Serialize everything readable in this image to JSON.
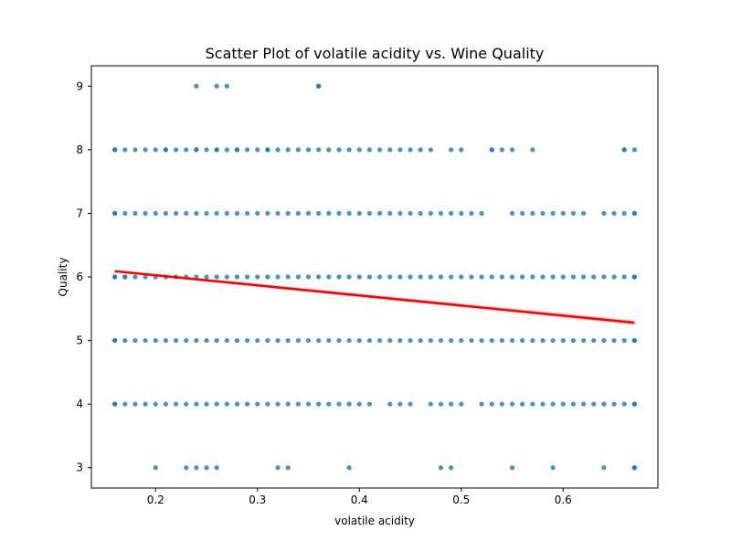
{
  "chart_data": {
    "type": "scatter",
    "title": "Scatter Plot of volatile acidity vs. Wine Quality",
    "xlabel": "volatile acidity",
    "ylabel": "Quality",
    "xlim": [
      0.137,
      0.693
    ],
    "ylim": [
      2.68,
      9.32
    ],
    "x_ticks": [
      0.2,
      0.3,
      0.4,
      0.5,
      0.6
    ],
    "x_tick_labels": [
      "0.2",
      "0.3",
      "0.4",
      "0.5",
      "0.6"
    ],
    "y_ticks": [
      3,
      4,
      5,
      6,
      7,
      8,
      9
    ],
    "y_tick_labels": [
      "3",
      "4",
      "5",
      "6",
      "7",
      "8",
      "9"
    ],
    "grid": false,
    "legend": "none",
    "colors": {
      "points": "#1f77b4",
      "regression": "#ff0000"
    },
    "regression_line": {
      "x": [
        0.16,
        0.67
      ],
      "y": [
        6.09,
        5.28
      ]
    },
    "series": [
      {
        "quality": 9,
        "x": [
          0.24,
          0.26,
          0.27,
          0.36,
          0.36
        ]
      },
      {
        "quality": 8,
        "x": [
          0.16,
          0.16,
          0.17,
          0.18,
          0.19,
          0.2,
          0.21,
          0.21,
          0.22,
          0.23,
          0.24,
          0.24,
          0.25,
          0.26,
          0.26,
          0.27,
          0.28,
          0.28,
          0.29,
          0.3,
          0.31,
          0.31,
          0.32,
          0.33,
          0.34,
          0.35,
          0.36,
          0.37,
          0.38,
          0.39,
          0.4,
          0.41,
          0.42,
          0.43,
          0.44,
          0.45,
          0.46,
          0.47,
          0.49,
          0.5,
          0.53,
          0.53,
          0.54,
          0.55,
          0.57,
          0.66,
          0.66,
          0.67
        ]
      },
      {
        "quality": 7,
        "x": [
          0.16,
          0.16,
          0.17,
          0.18,
          0.19,
          0.2,
          0.21,
          0.22,
          0.23,
          0.24,
          0.25,
          0.26,
          0.27,
          0.28,
          0.29,
          0.3,
          0.31,
          0.32,
          0.33,
          0.34,
          0.35,
          0.36,
          0.37,
          0.38,
          0.39,
          0.4,
          0.41,
          0.42,
          0.43,
          0.44,
          0.45,
          0.46,
          0.47,
          0.48,
          0.49,
          0.5,
          0.51,
          0.52,
          0.55,
          0.56,
          0.57,
          0.58,
          0.59,
          0.6,
          0.61,
          0.62,
          0.64,
          0.65,
          0.66,
          0.67,
          0.67
        ]
      },
      {
        "quality": 6,
        "x": [
          0.16,
          0.16,
          0.17,
          0.17,
          0.18,
          0.19,
          0.2,
          0.21,
          0.22,
          0.23,
          0.24,
          0.25,
          0.26,
          0.27,
          0.28,
          0.29,
          0.3,
          0.31,
          0.32,
          0.33,
          0.34,
          0.35,
          0.36,
          0.37,
          0.38,
          0.39,
          0.4,
          0.41,
          0.42,
          0.43,
          0.44,
          0.45,
          0.46,
          0.47,
          0.48,
          0.49,
          0.5,
          0.51,
          0.52,
          0.53,
          0.54,
          0.55,
          0.56,
          0.57,
          0.58,
          0.59,
          0.6,
          0.61,
          0.62,
          0.63,
          0.64,
          0.65,
          0.66,
          0.67,
          0.67
        ]
      },
      {
        "quality": 5,
        "x": [
          0.16,
          0.16,
          0.17,
          0.18,
          0.19,
          0.2,
          0.21,
          0.22,
          0.23,
          0.24,
          0.25,
          0.26,
          0.27,
          0.28,
          0.29,
          0.3,
          0.31,
          0.32,
          0.33,
          0.34,
          0.35,
          0.36,
          0.37,
          0.38,
          0.39,
          0.4,
          0.41,
          0.42,
          0.43,
          0.44,
          0.45,
          0.46,
          0.47,
          0.48,
          0.49,
          0.5,
          0.51,
          0.52,
          0.53,
          0.54,
          0.55,
          0.56,
          0.57,
          0.58,
          0.59,
          0.6,
          0.61,
          0.62,
          0.63,
          0.64,
          0.65,
          0.66,
          0.67,
          0.67
        ]
      },
      {
        "quality": 4,
        "x": [
          0.16,
          0.16,
          0.17,
          0.18,
          0.19,
          0.2,
          0.21,
          0.22,
          0.23,
          0.24,
          0.25,
          0.26,
          0.27,
          0.28,
          0.29,
          0.3,
          0.31,
          0.32,
          0.33,
          0.34,
          0.35,
          0.36,
          0.37,
          0.38,
          0.39,
          0.4,
          0.41,
          0.43,
          0.44,
          0.45,
          0.47,
          0.48,
          0.49,
          0.5,
          0.52,
          0.53,
          0.54,
          0.55,
          0.56,
          0.57,
          0.58,
          0.59,
          0.6,
          0.61,
          0.62,
          0.63,
          0.64,
          0.65,
          0.66,
          0.67,
          0.67
        ]
      },
      {
        "quality": 3,
        "x": [
          0.2,
          0.23,
          0.24,
          0.25,
          0.26,
          0.32,
          0.33,
          0.39,
          0.48,
          0.49,
          0.55,
          0.59,
          0.64,
          0.67,
          0.67
        ]
      }
    ]
  }
}
